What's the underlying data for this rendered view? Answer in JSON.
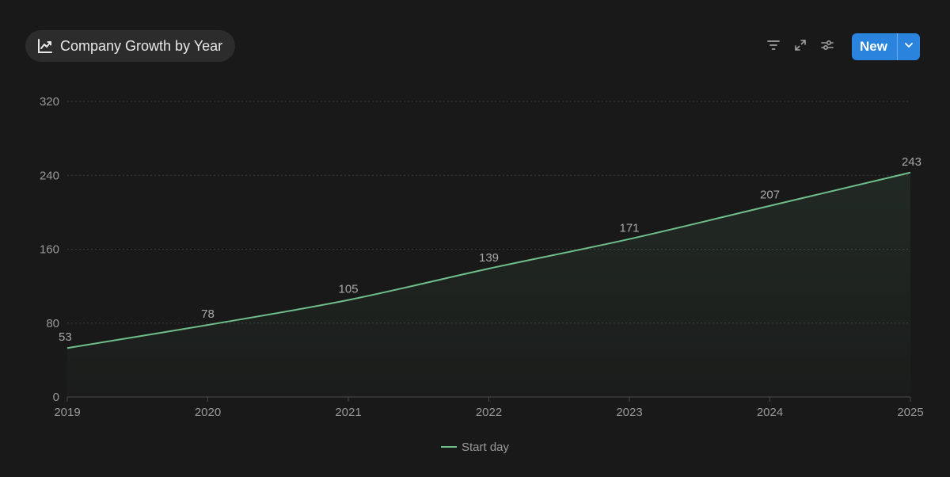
{
  "header": {
    "title": "Company Growth by Year",
    "title_icon": "line-chart-icon",
    "toolbar": {
      "filter_icon": "filter-icon",
      "expand_icon": "expand-icon",
      "settings_icon": "sliders-icon",
      "new_label": "New",
      "new_caret_icon": "chevron-down-icon"
    }
  },
  "colors": {
    "background": "#191919",
    "line": "#6fbf8a",
    "accent": "#2a83dd"
  },
  "chart_data": {
    "type": "area",
    "categories": [
      "2019",
      "2020",
      "2021",
      "2022",
      "2023",
      "2024",
      "2025"
    ],
    "series": [
      {
        "name": "Start day",
        "values": [
          53,
          78,
          105,
          139,
          171,
          207,
          243
        ]
      }
    ],
    "yticks": [
      0,
      80,
      160,
      240,
      320
    ],
    "ylim": [
      0,
      320
    ],
    "grid": true,
    "legend": "bottom-center",
    "data_labels": true
  }
}
